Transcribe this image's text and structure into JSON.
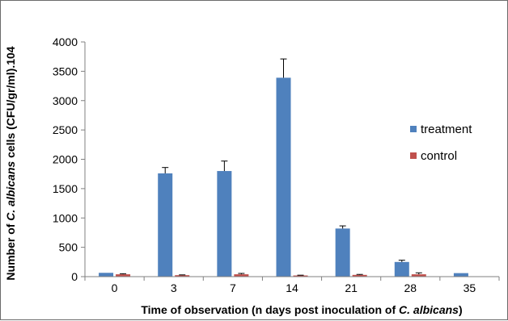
{
  "chart_data": {
    "type": "bar",
    "categories": [
      "0",
      "3",
      "7",
      "14",
      "21",
      "28",
      "35"
    ],
    "series": [
      {
        "name": "treatment",
        "color": "#4f81bd",
        "values": [
          65,
          1760,
          1800,
          3390,
          820,
          250,
          60
        ],
        "errors": [
          0,
          100,
          170,
          320,
          45,
          30,
          0
        ]
      },
      {
        "name": "control",
        "color": "#c0504d",
        "values": [
          40,
          25,
          40,
          20,
          30,
          40,
          0
        ],
        "errors": [
          10,
          5,
          15,
          5,
          8,
          25,
          0
        ]
      }
    ],
    "y_ticks": [
      "0",
      "500",
      "1000",
      "1500",
      "2000",
      "2500",
      "3000",
      "3500",
      "4000"
    ],
    "ylim": [
      0,
      4000
    ],
    "ylabel_parts": [
      {
        "text": "Number of ",
        "italic": false
      },
      {
        "text": "C. albicans",
        "italic": true
      },
      {
        "text": " cells (CFU/gr/ml).104",
        "italic": false
      }
    ],
    "xlabel_parts": [
      {
        "text": "Time of observation (n days post inoculation of ",
        "italic": false
      },
      {
        "text": "C. albicans",
        "italic": true
      },
      {
        "text": ")",
        "italic": false
      }
    ],
    "legend_position": "right"
  }
}
